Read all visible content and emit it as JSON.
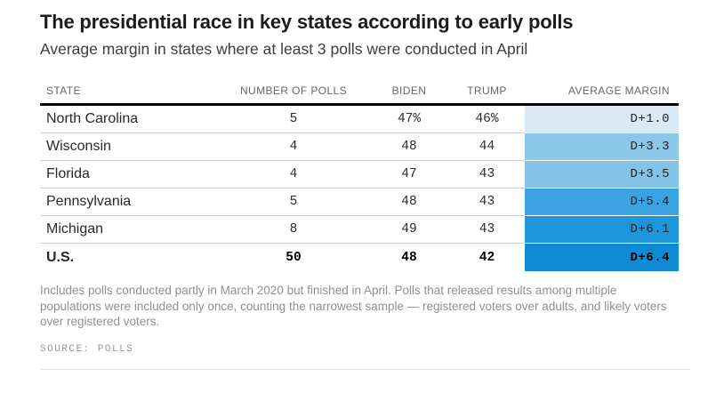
{
  "header": {
    "title": "The presidential race in key states according to early polls",
    "subtitle": "Average margin in states where at least 3 polls were conducted in April"
  },
  "table": {
    "columns": {
      "state": "STATE",
      "polls": "NUMBER OF POLLS",
      "biden": "BIDEN",
      "trump": "TRUMP",
      "margin": "AVERAGE MARGIN"
    },
    "rows": [
      {
        "state": "North Carolina",
        "polls": "5",
        "biden": "47%",
        "trump": "46%",
        "margin": "D+1.0",
        "margin_color": "#d9e9f6"
      },
      {
        "state": "Wisconsin",
        "polls": "4",
        "biden": "48",
        "trump": "44",
        "margin": "D+3.3",
        "margin_color": "#8bc7e9"
      },
      {
        "state": "Florida",
        "polls": "4",
        "biden": "47",
        "trump": "43",
        "margin": "D+3.5",
        "margin_color": "#84c3e7"
      },
      {
        "state": "Pennsylvania",
        "polls": "5",
        "biden": "48",
        "trump": "43",
        "margin": "D+5.4",
        "margin_color": "#3ba3df"
      },
      {
        "state": "Michigan",
        "polls": "8",
        "biden": "49",
        "trump": "43",
        "margin": "D+6.1",
        "margin_color": "#1e96da"
      },
      {
        "state": "U.S.",
        "polls": "50",
        "biden": "48",
        "trump": "42",
        "margin": "D+6.4",
        "margin_color": "#0f8bd5"
      }
    ]
  },
  "footnote": "Includes polls conducted partly in March 2020 but finished in April. Polls that released results among multiple populations were included only once, counting the narrowest sample — registered voters over adults, and likely voters over registered voters.",
  "source": "SOURCE: POLLS",
  "chart_data": {
    "type": "table",
    "title": "The presidential race in key states according to early polls",
    "subtitle": "Average margin in states where at least 3 polls were conducted in April",
    "columns": [
      "State",
      "Number of polls",
      "Biden",
      "Trump",
      "Average margin"
    ],
    "rows": [
      [
        "North Carolina",
        5,
        47,
        46,
        "D+1.0"
      ],
      [
        "Wisconsin",
        4,
        48,
        44,
        "D+3.3"
      ],
      [
        "Florida",
        4,
        47,
        43,
        "D+3.5"
      ],
      [
        "Pennsylvania",
        5,
        48,
        43,
        "D+5.4"
      ],
      [
        "Michigan",
        8,
        49,
        43,
        "D+6.1"
      ],
      [
        "U.S.",
        50,
        48,
        42,
        "D+6.4"
      ]
    ],
    "biden_unit": "percent",
    "trump_unit": "percent",
    "margin_values": [
      1.0,
      3.3,
      3.5,
      5.4,
      6.1,
      6.4
    ],
    "margin_color_scale": {
      "low": "#d9e9f6",
      "high": "#0f8bd5"
    },
    "legend_position": "none",
    "grid": "horizontal-row-rules"
  }
}
